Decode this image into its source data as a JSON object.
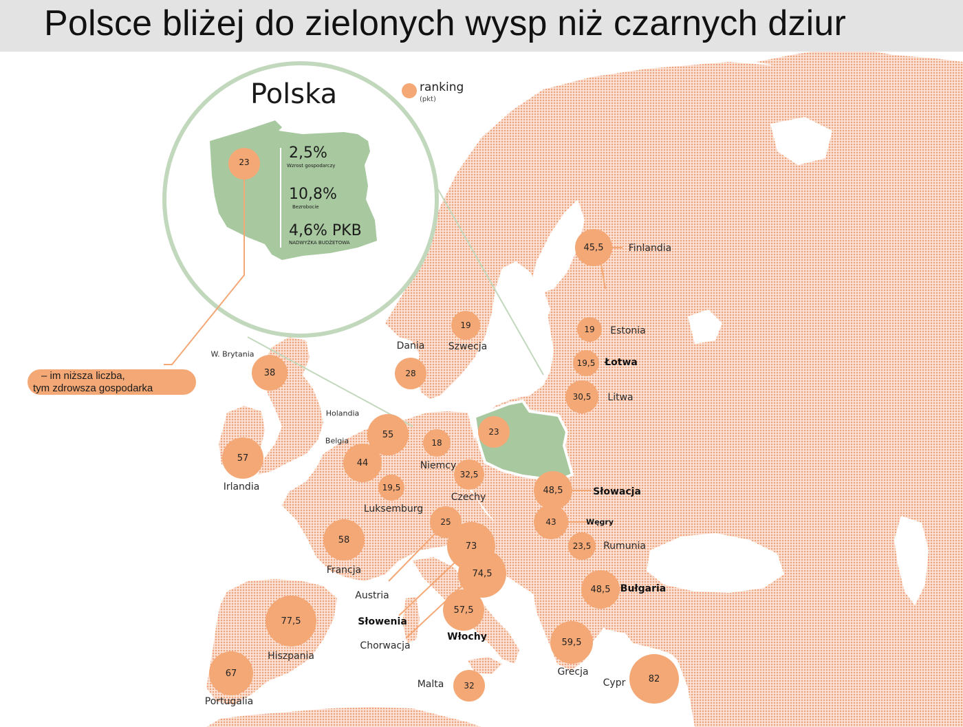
{
  "title": "Polsce bliżej do zielonych wysp niż czarnych dziur",
  "legend": {
    "label": "ranking",
    "sublabel": "(pkt)"
  },
  "note": [
    "– im niższa liczba,",
    "tym zdrowsza gospodarka"
  ],
  "inset": {
    "heading": "Polska",
    "ranking": "23",
    "stats": [
      {
        "value": "2,5%",
        "caption": "Wzrost gospodarczy"
      },
      {
        "value": "10,8%",
        "caption": "Bezrobocie"
      },
      {
        "value": "4,6% PKB",
        "caption": "NADWYŻKA BUDŻETOWA"
      }
    ]
  },
  "colors": {
    "marker": "#f3a876",
    "land": "#f6c7ae",
    "poland": "#a8c9a0",
    "inset_ring": "#c2d8bd",
    "title_bar": "#e3e3e3"
  },
  "countries": [
    {
      "id": "finlandia",
      "name": "Finlandia",
      "score": "45,5",
      "score_value": 45.5
    },
    {
      "id": "szwecja",
      "name": "Szwecja",
      "score": "19",
      "score_value": 19
    },
    {
      "id": "estonia",
      "name": "Estonia",
      "score": "19",
      "score_value": 19
    },
    {
      "id": "lotwa",
      "name": "Łotwa",
      "score": "19,5",
      "score_value": 19.5
    },
    {
      "id": "litwa",
      "name": "Litwa",
      "score": "30,5",
      "score_value": 30.5
    },
    {
      "id": "dania",
      "name": "Dania",
      "score": "28",
      "score_value": 28
    },
    {
      "id": "wbrytania",
      "name": "W. Brytania",
      "score": "38",
      "score_value": 38
    },
    {
      "id": "irlandia",
      "name": "Irlandia",
      "score": "57",
      "score_value": 57
    },
    {
      "id": "holandia",
      "name": "Holandia",
      "score": "55",
      "score_value": 55
    },
    {
      "id": "belgia",
      "name": "Belgia",
      "score": "44",
      "score_value": 44
    },
    {
      "id": "luksemburg",
      "name": "Luksemburg",
      "score": "19,5",
      "score_value": 19.5
    },
    {
      "id": "niemcy",
      "name": "Niemcy",
      "score": "18",
      "score_value": 18
    },
    {
      "id": "polska",
      "name": "",
      "score": "23",
      "score_value": 23
    },
    {
      "id": "czechy",
      "name": "Czechy",
      "score": "32,5",
      "score_value": 32.5
    },
    {
      "id": "slowacja",
      "name": "Słowacja",
      "score": "48,5",
      "score_value": 48.5
    },
    {
      "id": "wegry",
      "name": "Węgry",
      "score": "43",
      "score_value": 43
    },
    {
      "id": "rumunia",
      "name": "Rumunia",
      "score": "23,5",
      "score_value": 23.5
    },
    {
      "id": "bulgaria",
      "name": "Bułgaria",
      "score": "48,5",
      "score_value": 48.5
    },
    {
      "id": "austria",
      "name": "Austria",
      "score": "25",
      "score_value": 25
    },
    {
      "id": "slowenia",
      "name": "Słowenia",
      "score": "73",
      "score_value": 73
    },
    {
      "id": "chorwacja",
      "name": "Chorwacja",
      "score": "74,5",
      "score_value": 74.5
    },
    {
      "id": "francja",
      "name": "Francja",
      "score": "58",
      "score_value": 58
    },
    {
      "id": "wlochy",
      "name": "Włochy",
      "score": "57,5",
      "score_value": 57.5
    },
    {
      "id": "hiszpania",
      "name": "Hiszpania",
      "score": "77,5",
      "score_value": 77.5
    },
    {
      "id": "portugalia",
      "name": "Portugalia",
      "score": "67",
      "score_value": 67
    },
    {
      "id": "malta",
      "name": "Malta",
      "score": "32",
      "score_value": 32
    },
    {
      "id": "grecja",
      "name": "Grecja",
      "score": "59,5",
      "score_value": 59.5
    },
    {
      "id": "cypr",
      "name": "Cypr",
      "score": "82",
      "score_value": 82
    }
  ]
}
